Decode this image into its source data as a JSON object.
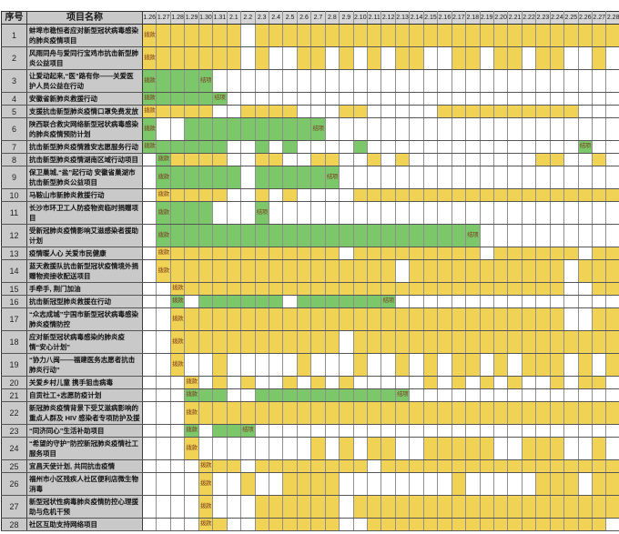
{
  "chart_data": {
    "type": "table",
    "title": "",
    "columns": {
      "index": "序号",
      "name": "项目名称"
    },
    "dates": [
      "1.26",
      "1.27",
      "1.28",
      "1.29",
      "1.30",
      "1.31",
      "2.1",
      "2.2",
      "2.3",
      "2.4",
      "2.5",
      "2.6",
      "2.7",
      "2.8",
      "2.9",
      "2.10",
      "2.11",
      "2.12",
      "2.13",
      "2.14",
      "2.15",
      "2.16",
      "2.17",
      "2.18",
      "2.19",
      "2.20",
      "2.21",
      "2.22",
      "2.23",
      "2.24",
      "2.25",
      "2.26",
      "2.27",
      "2.28"
    ],
    "cell_encoding": {
      "Y": "yellow",
      "G": "green",
      ".": "empty"
    },
    "colors": {
      "yellow": "#f0d355",
      "green": "#7cc76a",
      "date_header_bg": "#d6d6d6",
      "label_column_bg": "#c9c9c9",
      "cell_label_text": "#7b3a1d",
      "grid_line": "#8f8f8f"
    },
    "rows": [
      {
        "num": "1",
        "lines": 2,
        "name": "蚌埠市稳恒者应对新型冠状病毒感染的肺炎疫情项目",
        "cells": "YYYYYYY.YYYYYYYYYYYYYYYYYYYYYYYYYY",
        "labels": {
          "0": "拨款"
        }
      },
      {
        "num": "2",
        "lines": 2,
        "name": "风雨同舟与爱同行宝鸡市抗击新型肺炎公益项目",
        "cells": "YYYYYYY.Y..YY.Y.Y.YY..YY.YY.YY..Y.",
        "labels": {
          "0": "拨款"
        }
      },
      {
        "num": "3",
        "lines": 2,
        "name": "让爱动起来,“医”路有你——关爱医护人员公益在行动",
        "cells": "GGGGG.............................",
        "labels": {
          "0": "拨款",
          "4": "结项"
        }
      },
      {
        "num": "4",
        "lines": 1,
        "name": "安徽省新肺炎救援行动",
        "cells": "GGGGGG............................",
        "labels": {
          "0": "拨款",
          "5": "结项"
        }
      },
      {
        "num": "5",
        "lines": 1,
        "name": "支援抗击新型肺炎疫情口罩免费发放",
        "cells": "YYYYY..YYYY...YY.....YYYYYYYYYY...",
        "labels": {
          "0": "拨款"
        }
      },
      {
        "num": "6",
        "lines": 2,
        "name": "陕西联合救灾网络新型冠状病毒感染的肺炎疫情预防计划",
        "cells": "G..GGGGGGGGGG.....................",
        "labels": {
          "0": "拨款",
          "12": "结项"
        }
      },
      {
        "num": "7",
        "lines": 1,
        "name": "抗击新型肺炎疫情雅安志愿服务行动",
        "cells": "GGGGGG..G.G....G...............G..",
        "labels": {
          "0": "拨款",
          "31": "结项"
        }
      },
      {
        "num": "8",
        "lines": 1,
        "name": "抗击新型肺炎疫情湖南区域行动项目",
        "cells": ".GYYYY..YY..YY..Y.Y.........YY..Y.",
        "labels": {
          "1": "拨款"
        }
      },
      {
        "num": "9",
        "lines": 2,
        "name": "保卫巢城,“盐”起行动 安徽省巢湖市抗击新型肺炎公益项目",
        "cells": ".GGGGGG.GGGGGG....................",
        "labels": {
          "1": "拨款",
          "13": "结项"
        }
      },
      {
        "num": "10",
        "lines": 1,
        "name": "马鞍山市新肺炎救援行动",
        "cells": ".YYYYY..Y.Y....YYYYYYYYYYYYYYYYYYY",
        "labels": {
          "1": "拨款"
        }
      },
      {
        "num": "11",
        "lines": 2,
        "name": "长沙市环卫工人防疫物资临时捐赠项目",
        "cells": ".GGGG...G.........................",
        "labels": {
          "1": "拨款",
          "8": "结项"
        }
      },
      {
        "num": "12",
        "lines": 2,
        "name": "受新冠肺炎疫情影响艾滋感染者援助计划",
        "cells": ".GGGGGGGGGGGGGGGGGGGGGGG..........",
        "labels": {
          "1": "拨款",
          "23": "结项"
        }
      },
      {
        "num": "13",
        "lines": 1,
        "name": "疫情暖人心 关爱市民健康",
        "cells": ".YYYYYYYYYYYYY.YYYYYYYYY.YYYYYY.YY",
        "labels": {
          "1": "拨款"
        }
      },
      {
        "num": "14",
        "lines": 2,
        "name": "蓝天救援队抗击新型冠状疫情境外捐赠物资接收配送项目",
        "cells": ".YYYYYYYYYYYYYYYYY.YYYYYYYYYYY.YYY",
        "labels": {
          "1": "拨款"
        }
      },
      {
        "num": "15",
        "lines": 1,
        "name": "手牵手, 荆门加油",
        "cells": "..YYYYYYYYYYYYYYYYYYYYYYYYYYYY..YY",
        "labels": {
          "2": "拨款"
        }
      },
      {
        "num": "16",
        "lines": 1,
        "name": "抗击新冠型肺炎救援在行动",
        "cells": "..G.GGGGGG.GGGGGGG................",
        "labels": {
          "2": "拨款",
          "17": "结项"
        }
      },
      {
        "num": "17",
        "lines": 2,
        "name": "“众志成城”宁国市新型冠状病毒感染肺炎疫情防控",
        "cells": "..YYYYYYYYYYYYYYYYYYYYYYYYYYYY..YY",
        "labels": {
          "2": "拨款"
        }
      },
      {
        "num": "18",
        "lines": 2,
        "name": "应对新型冠状病毒感染的肺炎疫情“安心计划”",
        "cells": "..YYYYYYYYYYYY.YYYYYYYYYYYYYYYYYYY",
        "labels": {
          "2": "拨款"
        }
      },
      {
        "num": "19",
        "lines": 2,
        "name": "“协力八闽——福建医务志愿者抗击肺炎行动”",
        "cells": "..Y..Y.....Y...Y..Y.Y.YY.Y.YYY.Y.Y",
        "labels": {
          "2": "拨款"
        }
      },
      {
        "num": "20",
        "lines": 1,
        "name": "关爱乡村儿童 携手狙击病毒",
        "cells": "...Y.Y.Y..Y.Y.Y.....Y.Y.Y.Y..Y.YY.",
        "labels": {
          "3": "拨款"
        }
      },
      {
        "num": "21",
        "lines": 1,
        "name": "自贡社工+志愿防疫计划",
        "cells": "...GGG..GGGGGGGGGGG...............",
        "labels": {
          "3": "拨款",
          "18": "结项"
        }
      },
      {
        "num": "22",
        "lines": 2,
        "name": "新冠肺炎疫情背景下受艾滋病影响的重点人群及 HIV 感染者专项防护及援",
        "cells": "...YYYYYYYYYYYYYYYYYYYYYYYYYYYYYYY",
        "labels": {
          "3": "拨款"
        }
      },
      {
        "num": "23",
        "lines": 1,
        "name": "“同济同心”生活补助项目",
        "cells": "...G.GGG..........................",
        "labels": {
          "3": "拨款",
          "7": "结项"
        }
      },
      {
        "num": "24",
        "lines": 2,
        "name": "“希望的守护”防控新冠肺炎疫情社工服务项目",
        "cells": "...Y........Y.Y.YY..YYYYY..YYY..Y.",
        "labels": {
          "3": "拨款"
        }
      },
      {
        "num": "25",
        "lines": 1,
        "name": "宜昌天使计划, 共同抗击疫情",
        "cells": "....YYY.YYYYYYYY.YYYYYYYYYYYYYYYYY",
        "labels": {
          "4": "拨款"
        }
      },
      {
        "num": "26",
        "lines": 2,
        "name": "福州市小区残疾人社区便利店微生物消毒",
        "cells": "....Y..Y..YYYY........Y.....YYY.YY",
        "labels": {
          "4": "拨款"
        }
      },
      {
        "num": "27",
        "lines": 2,
        "name": "新型冠状性病毒肺炎疫情防控心理援助与危机干预",
        "cells": "....Y...YYYYYY.YYYYYYYYYYYYYYYYYYY",
        "labels": {
          "4": "拨款"
        }
      },
      {
        "num": "28",
        "lines": 1,
        "name": "社区互助支持网络项目",
        "cells": "....YY..YYYYYY..YYYYYYYYYYYYYYYYY.",
        "labels": {
          "4": "拨款"
        }
      }
    ]
  }
}
